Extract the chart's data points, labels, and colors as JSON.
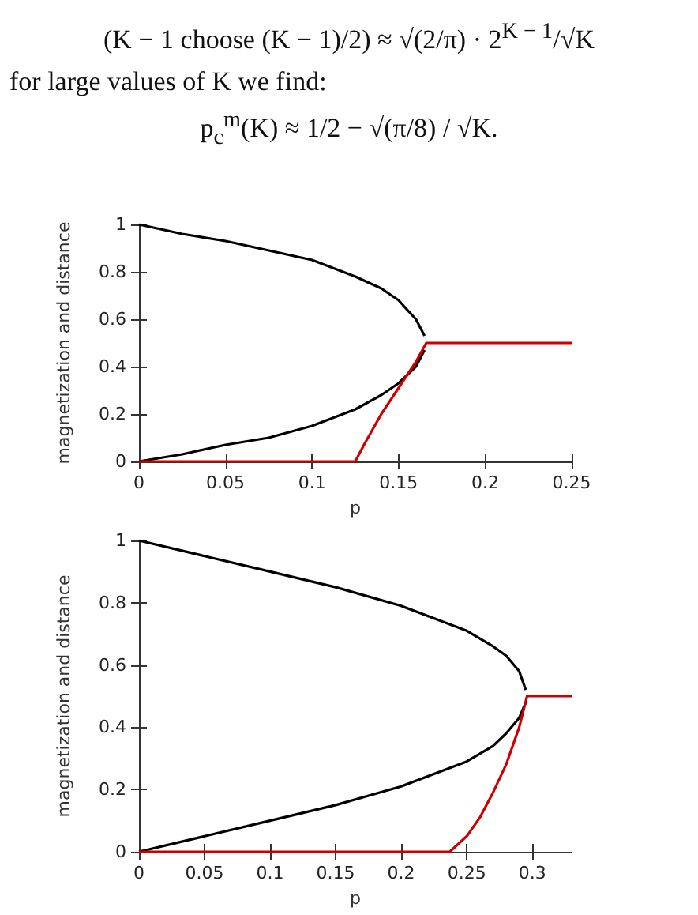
{
  "chart_data": [
    {
      "type": "line",
      "annotations": [
        "(K − 1 choose (K − 1)/2) ≈ √(2/π) · 2$^{K − 1}$/√K",
        "for large values of K we find:",
        "p$_{c}$$^{m}$(K) ≈ 1/2 − √(π/8) / √K."
      ],
      "xlabel": "p",
      "ylabel": "magnetization and distance",
      "xlim": [
        0,
        0.25
      ],
      "xticks": [
        0,
        0.05,
        0.1,
        0.15,
        0.2,
        0.25
      ],
      "ylim": [
        0,
        1
      ],
      "yticks": [
        0,
        0.2,
        0.4,
        0.6,
        0.8,
        1
      ],
      "grid": false,
      "marker": "none",
      "line_style": "solid",
      "series": [
        {
          "color": "#000000",
          "x": [
            0,
            0.025,
            0.05,
            0.075,
            0.1,
            0.125,
            0.14,
            0.15,
            0.16,
            0.165
          ],
          "values": [
            1,
            0.96,
            0.93,
            0.89,
            0.85,
            0.78,
            0.73,
            0.68,
            0.6,
            0.53
          ]
        },
        {
          "color": "#000000",
          "x": [
            0,
            0.025,
            0.05,
            0.075,
            0.1,
            0.125,
            0.14,
            0.15,
            0.16,
            0.165
          ],
          "values": [
            0,
            0.03,
            0.07,
            0.1,
            0.15,
            0.22,
            0.28,
            0.33,
            0.4,
            0.47
          ]
        },
        {
          "color": "#cc0000",
          "x": [
            0,
            0.125,
            0.13,
            0.14,
            0.15,
            0.16,
            0.166,
            0.25
          ],
          "values": [
            0,
            0,
            0.07,
            0.2,
            0.31,
            0.42,
            0.5,
            0.5
          ]
        }
      ]
    },
    {
      "type": "line",
      "xlabel": "p",
      "ylabel": "magnetization and distance",
      "xlim": [
        0,
        0.33
      ],
      "xticks": [
        0,
        0.05,
        0.1,
        0.15,
        0.2,
        0.25,
        0.3
      ],
      "ylim": [
        0,
        1
      ],
      "yticks": [
        0,
        0.2,
        0.4,
        0.6,
        0.8,
        1
      ],
      "grid": false,
      "marker": "none",
      "line_style": "solid",
      "series": [
        {
          "color": "#000000",
          "x": [
            0,
            0.05,
            0.1,
            0.15,
            0.2,
            0.25,
            0.27,
            0.28,
            0.29,
            0.295
          ],
          "values": [
            1,
            0.95,
            0.9,
            0.85,
            0.79,
            0.71,
            0.66,
            0.63,
            0.58,
            0.52
          ]
        },
        {
          "color": "#000000",
          "x": [
            0,
            0.05,
            0.1,
            0.15,
            0.2,
            0.25,
            0.27,
            0.28,
            0.29,
            0.295
          ],
          "values": [
            0,
            0.05,
            0.1,
            0.15,
            0.21,
            0.29,
            0.34,
            0.38,
            0.43,
            0.48
          ]
        },
        {
          "color": "#cc0000",
          "x": [
            0,
            0.237,
            0.25,
            0.26,
            0.27,
            0.28,
            0.29,
            0.296,
            0.33
          ],
          "values": [
            0,
            0,
            0.05,
            0.11,
            0.19,
            0.28,
            0.4,
            0.5,
            0.5
          ]
        }
      ]
    }
  ]
}
